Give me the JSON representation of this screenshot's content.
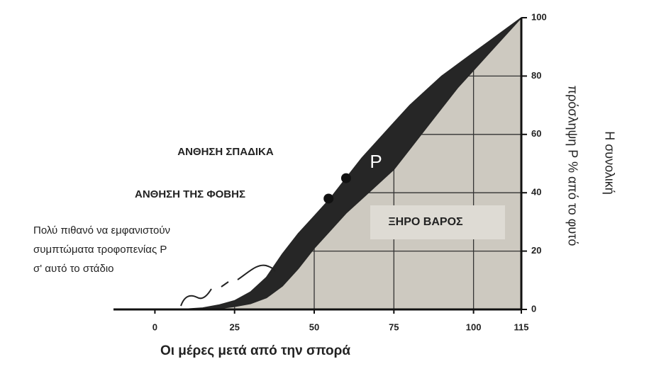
{
  "chart_data": {
    "type": "area",
    "x_label": "Οι μέρες μετά από την σπορά",
    "y_label": [
      "Η συνολική",
      "πρόσληψη P % από το φυτό"
    ],
    "x": [
      8,
      15,
      20,
      25,
      30,
      35,
      40,
      45,
      50,
      55,
      60,
      65,
      70,
      75,
      80,
      85,
      90,
      95,
      100,
      105,
      110,
      115
    ],
    "series": [
      {
        "name": "P",
        "color": "#262626",
        "values": [
          0,
          0.5,
          1.5,
          3,
          6,
          11,
          19,
          26,
          32,
          38,
          45,
          52,
          58,
          64,
          70,
          75,
          80,
          84,
          88,
          92,
          96,
          100
        ]
      },
      {
        "name": "ΞΗΡΟ ΒΑΡΟΣ",
        "color": "#cdc9c0",
        "values": [
          0,
          0,
          0.3,
          1,
          2,
          4,
          8,
          14,
          21,
          27,
          33,
          38,
          43,
          48,
          55,
          62,
          69,
          76,
          82,
          88,
          94,
          100
        ]
      }
    ],
    "points": {
      "x": [
        54.5,
        60
      ],
      "y": [
        38,
        45
      ],
      "color": "#111111"
    },
    "annotations": [
      "ΑΝΘΗΣΗ ΣΠΑΔΙΚΑ",
      "ΑΝΘΗΣΗ ΤΗΣ ΦΟΒΗΣ"
    ],
    "note": [
      "Πολύ πιθανό να εμφανιστούν",
      "συμπτώματα τροφοπενίας P",
      "σ' αυτό το στάδιο"
    ],
    "xlim": [
      -13,
      115
    ],
    "ylim": [
      0,
      100
    ],
    "xticks": [
      0,
      25,
      50,
      75,
      100,
      115
    ],
    "yticks": [
      0,
      20,
      40,
      60,
      80,
      100
    ],
    "grid": true
  }
}
